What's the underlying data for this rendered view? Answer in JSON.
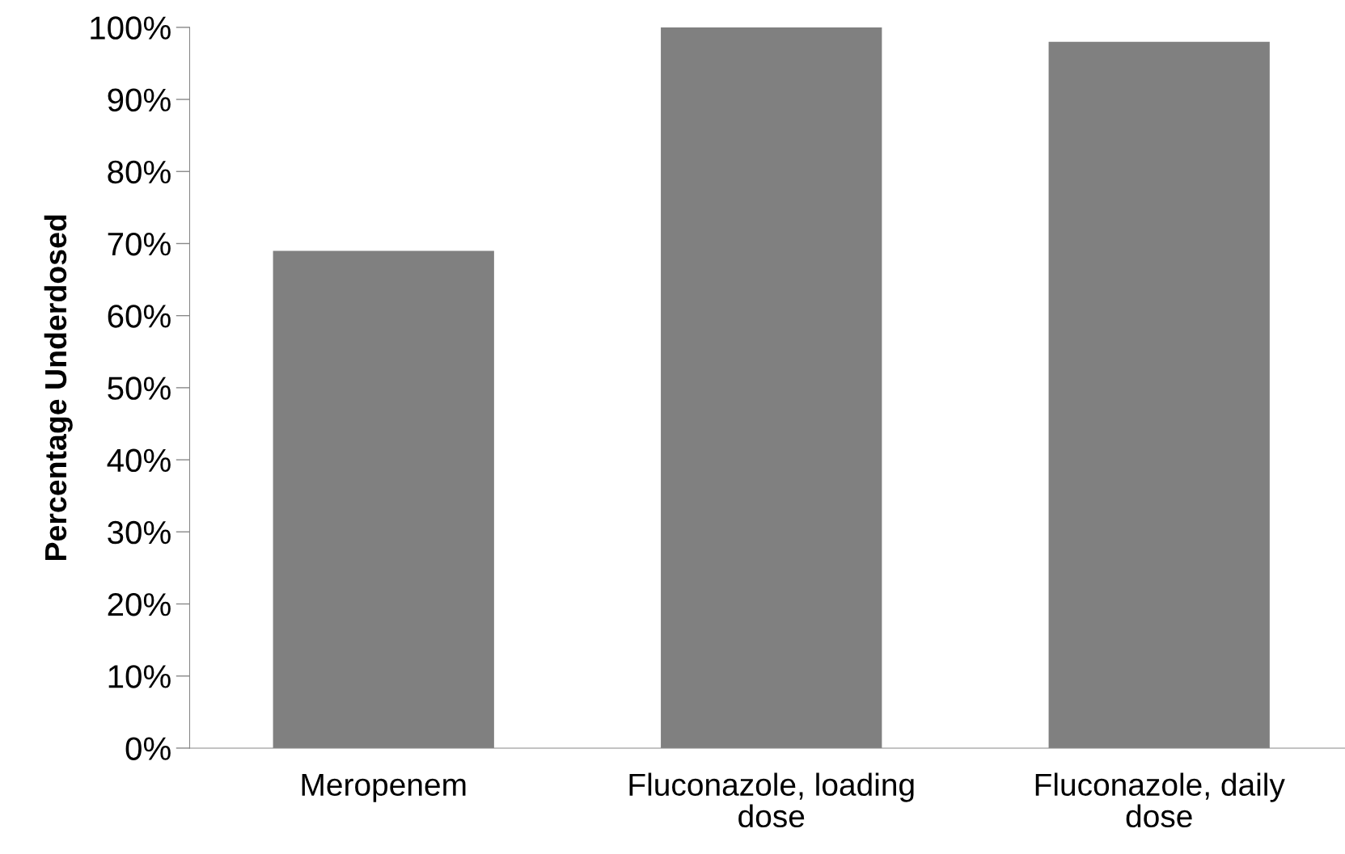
{
  "chart_data": {
    "type": "bar",
    "ylabel": "Percentage Underdosed",
    "categories": [
      "Meropenem",
      "Fluconazole, loading\ndose",
      "Fluconazole, daily\ndose"
    ],
    "values": [
      69,
      100,
      98
    ],
    "color": "#808080",
    "ylim": [
      0,
      100
    ],
    "yticks": [
      {
        "value": 0,
        "label": "0%"
      },
      {
        "value": 10,
        "label": "10%"
      },
      {
        "value": 20,
        "label": "20%"
      },
      {
        "value": 30,
        "label": "30%"
      },
      {
        "value": 40,
        "label": "40%"
      },
      {
        "value": 50,
        "label": "50%"
      },
      {
        "value": 60,
        "label": "60%"
      },
      {
        "value": 70,
        "label": "70%"
      },
      {
        "value": 80,
        "label": "80%"
      },
      {
        "value": 90,
        "label": "90%"
      },
      {
        "value": 100,
        "label": "100%"
      }
    ],
    "grid": false
  }
}
